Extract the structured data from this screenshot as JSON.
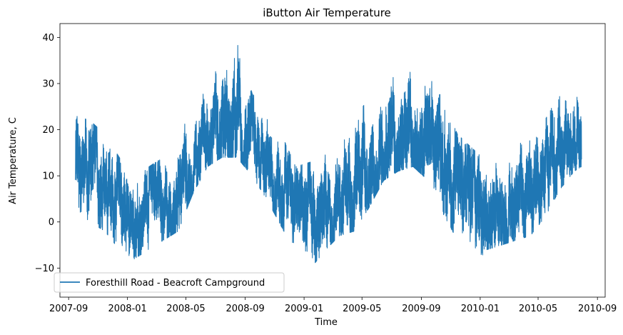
{
  "chart_data": {
    "type": "line",
    "title": "iButton Air Temperature",
    "xlabel": "Time",
    "ylabel": "Air Temperature, C",
    "xlim": [
      "2007-08-14",
      "2010-09-17"
    ],
    "ylim": [
      -16.3,
      43.0
    ],
    "grid": false,
    "legend_position": "lower-left",
    "x_ticks": [
      "2007-09",
      "2008-01",
      "2008-05",
      "2008-09",
      "2009-01",
      "2009-05",
      "2009-09",
      "2010-01",
      "2010-05",
      "2010-09"
    ],
    "y_ticks": [
      -10,
      0,
      10,
      20,
      30,
      40
    ],
    "series": [
      {
        "name": "Foresthill Road - Beacroft Campground",
        "color": "#1f77b4",
        "x": [
          "2007-09-15",
          "2007-10-15",
          "2007-11-15",
          "2007-12-15",
          "2008-01-15",
          "2008-02-15",
          "2008-03-15",
          "2008-04-15",
          "2008-05-15",
          "2008-06-15",
          "2008-07-15",
          "2008-08-15",
          "2008-09-15",
          "2008-10-15",
          "2008-11-15",
          "2008-12-15",
          "2009-01-15",
          "2009-02-15",
          "2009-03-15",
          "2009-04-15",
          "2009-05-15",
          "2009-06-15",
          "2009-07-15",
          "2009-08-15",
          "2009-09-15",
          "2009-10-15",
          "2009-11-15",
          "2009-12-15",
          "2010-01-15",
          "2010-02-15",
          "2010-03-15",
          "2010-04-15",
          "2010-05-15",
          "2010-06-15",
          "2010-07-15",
          "2010-07-30"
        ],
        "y": [
          13,
          11,
          8,
          3,
          1,
          2,
          4,
          6,
          12,
          20,
          21,
          22,
          19,
          14,
          8,
          3,
          2,
          4,
          6,
          8,
          12,
          16,
          19,
          20,
          19,
          13,
          6,
          4,
          3,
          4,
          5,
          7,
          11,
          16,
          19,
          20
        ],
        "range_low": [
          3,
          0,
          -2,
          -6,
          -8,
          -6,
          -4,
          -2,
          6,
          12,
          14,
          14,
          10,
          5,
          -1,
          -7,
          -10,
          -6,
          -3,
          -2,
          3,
          9,
          11,
          12,
          9,
          2,
          -4,
          -10,
          -6,
          -5,
          -4,
          -3,
          1,
          7,
          11,
          12
        ],
        "range_high": [
          23,
          22,
          19,
          14,
          9,
          12,
          14,
          18,
          25,
          30,
          37,
          40,
          28,
          23,
          19,
          12,
          13,
          15,
          17,
          22,
          27,
          31,
          34,
          35,
          33,
          27,
          19,
          16,
          13,
          15,
          17,
          19,
          22,
          28,
          30,
          30
        ]
      }
    ]
  }
}
